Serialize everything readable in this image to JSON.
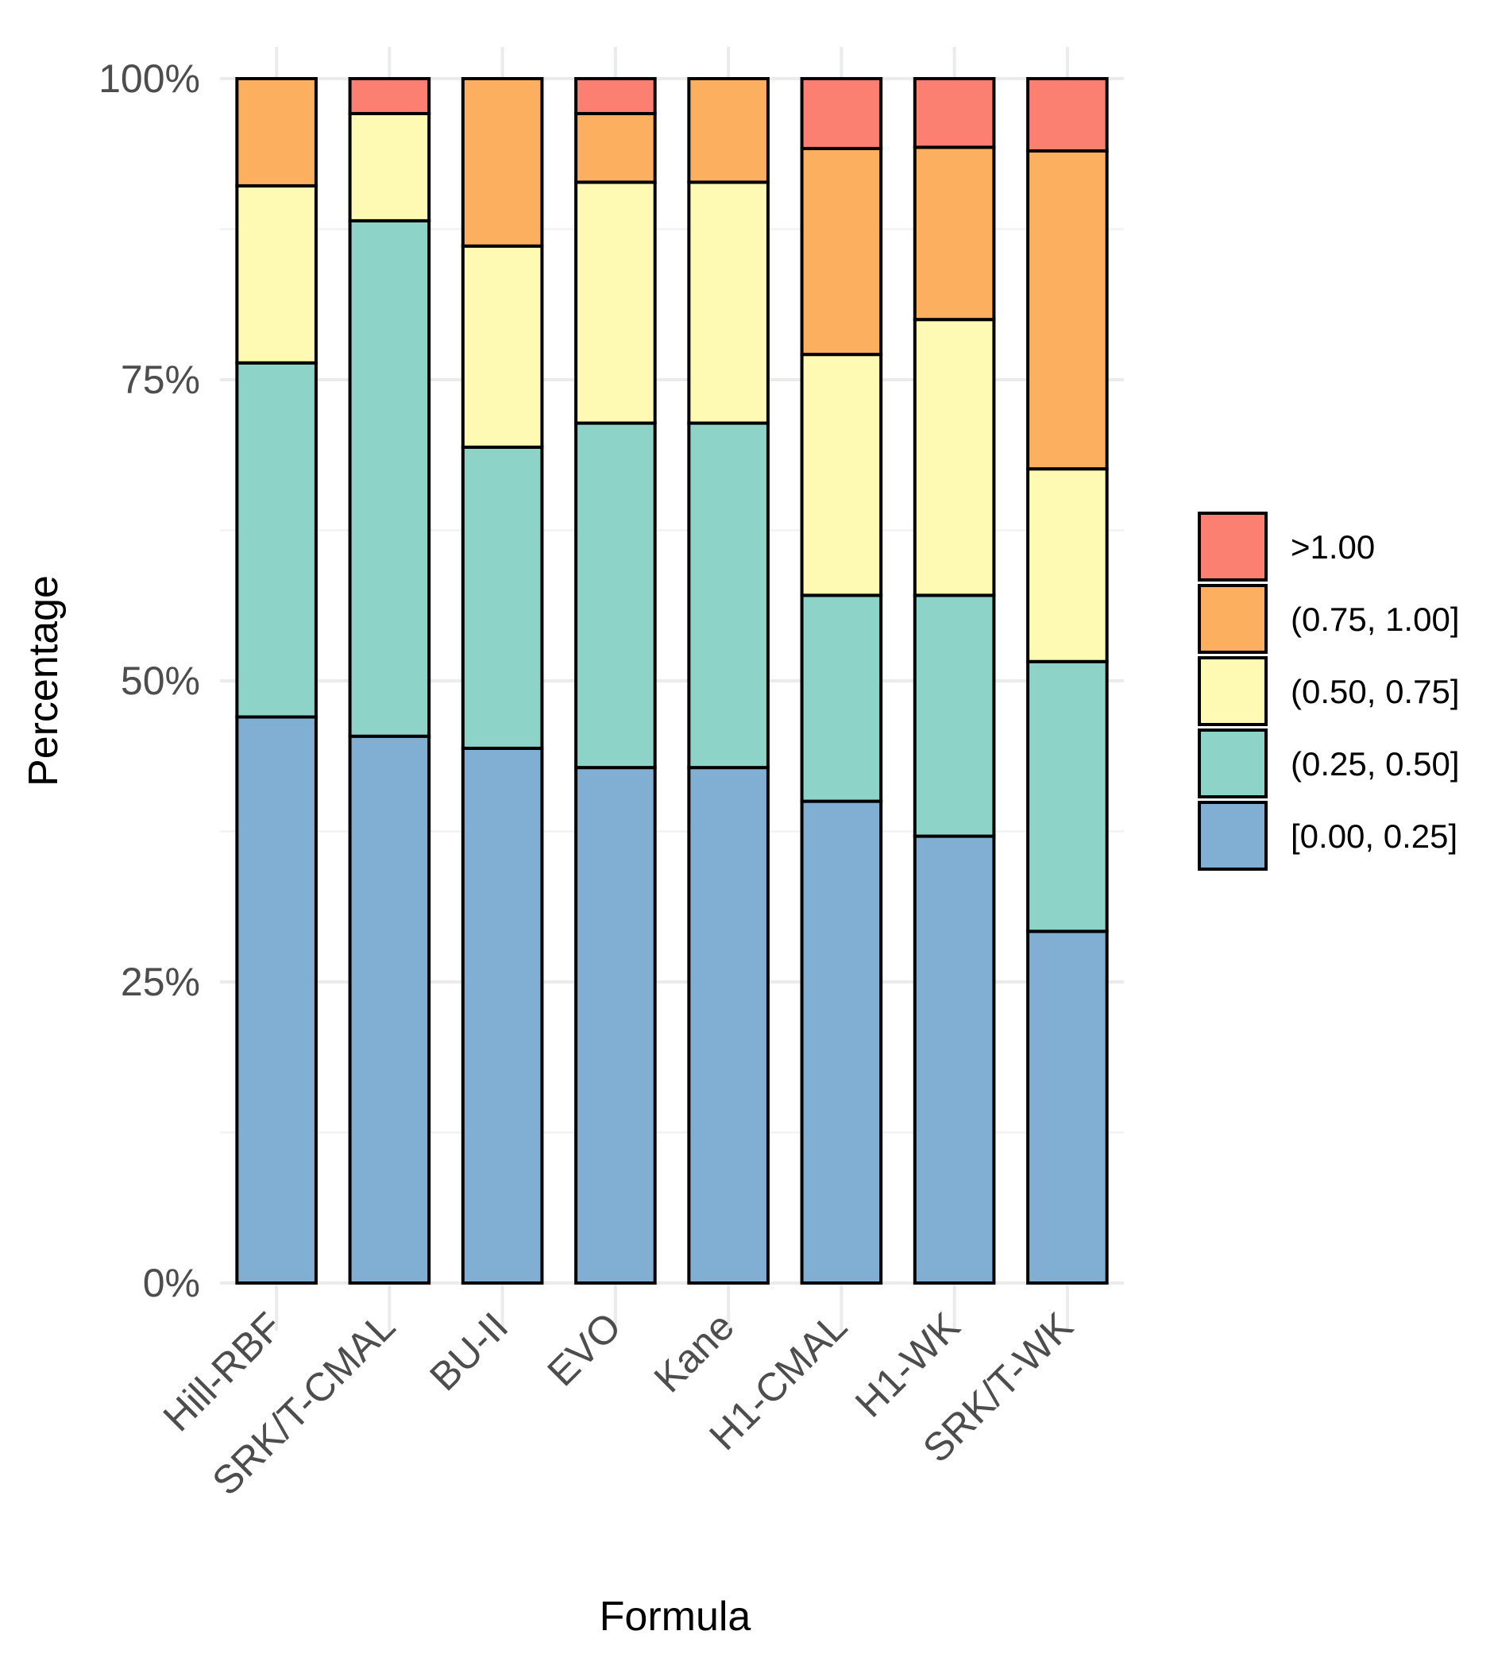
{
  "chart_data": {
    "type": "bar",
    "stacked": true,
    "title": "",
    "xlabel": "Formula",
    "ylabel": "Percentage",
    "ylim": [
      0,
      100
    ],
    "y_ticks": [
      0,
      25,
      50,
      75,
      100
    ],
    "y_tick_labels": [
      "0%",
      "25%",
      "50%",
      "75%",
      "100%"
    ],
    "y_minor_ticks": [
      12.5,
      37.5,
      62.5,
      87.5
    ],
    "grid": true,
    "legend_position": "right",
    "categories": [
      "Hill-RBF",
      "SRK/T-CMAL",
      "BU-II",
      "EVO",
      "Kane",
      "H1-CMAL",
      "H1-WK",
      "SRK/T-WK"
    ],
    "series": [
      {
        "name": "[0.00, 0.25]",
        "color": "#80AFD3",
        "values": [
          47.0,
          45.4,
          44.4,
          42.8,
          42.8,
          40.0,
          37.1,
          29.2
        ]
      },
      {
        "name": "(0.25, 0.50]",
        "color": "#8ED3C7",
        "values": [
          29.4,
          42.8,
          25.0,
          28.6,
          28.6,
          17.1,
          20.0,
          22.4
        ]
      },
      {
        "name": "(0.50, 0.75]",
        "color": "#FFFAB3",
        "values": [
          14.7,
          8.9,
          16.7,
          20.0,
          20.0,
          20.0,
          22.9,
          16.0
        ]
      },
      {
        "name": "(0.75, 1.00]",
        "color": "#FDAF60",
        "values": [
          8.9,
          0.0,
          13.9,
          5.7,
          8.6,
          17.1,
          14.3,
          26.4
        ]
      },
      {
        "name": ">1.00",
        "color": "#FB8072",
        "values": [
          0.0,
          2.9,
          0.0,
          2.9,
          0.0,
          5.8,
          5.7,
          6.0
        ]
      }
    ],
    "legend_order": [
      ">1.00",
      "(0.75, 1.00]",
      "(0.50, 0.75]",
      "(0.25, 0.50]",
      "[0.00, 0.25]"
    ]
  }
}
